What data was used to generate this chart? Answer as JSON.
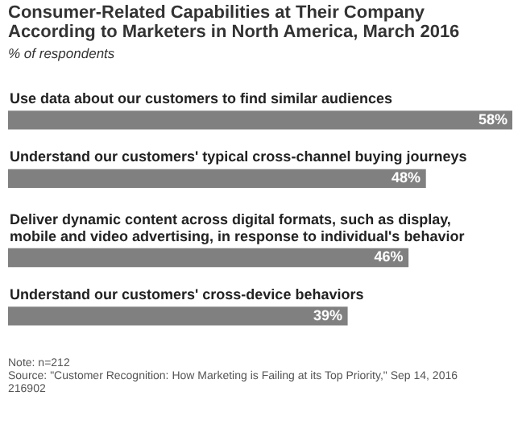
{
  "chart_data": {
    "type": "bar",
    "orientation": "horizontal",
    "title": "Consumer-Related Capabilities at Their Company According to Marketers in North America, March 2016",
    "subtitle": "% of respondents",
    "categories": [
      "Use data about our customers to find similar audiences",
      "Understand our customers' typical cross-channel buying journeys",
      "Deliver dynamic content across digital formats, such as display, mobile and video advertising, in response to individual's behavior",
      "Understand our customers' cross-device behaviors"
    ],
    "values": [
      58,
      48,
      46,
      39
    ],
    "value_labels": [
      "58%",
      "48%",
      "46%",
      "39%"
    ],
    "color": "#808080",
    "annotations": [
      "Note: n=212",
      "Source: \"Customer Recognition: How Marketing is Failing at its Top Priority,\" Sep 14, 2016",
      "216902"
    ]
  }
}
